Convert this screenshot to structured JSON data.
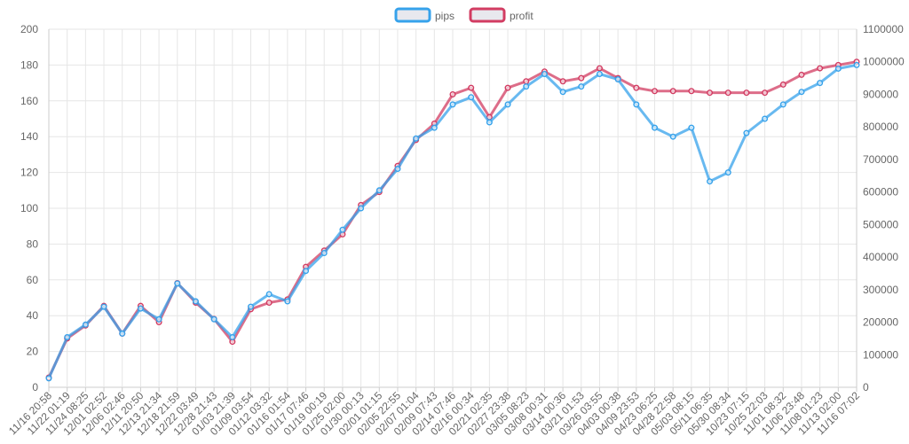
{
  "chart_data": {
    "type": "line",
    "title": "",
    "legend_position": "top-center",
    "grid": true,
    "x": [
      "11/16 20:58",
      "11/22 01:19",
      "11/24 08:25",
      "12/01 02:52",
      "12/06 02:46",
      "12/11 20:50",
      "12/13 21:34",
      "12/18 21:59",
      "12/22 03:49",
      "12/28 21:43",
      "01/03 21:39",
      "01/09 03:54",
      "01/12 03:32",
      "01/16 01:54",
      "01/17 07:46",
      "01/19 00:19",
      "01/25 02:00",
      "01/30 00:13",
      "02/01 01:15",
      "02/05 22:55",
      "02/07 01:04",
      "02/09 07:43",
      "02/14 07:46",
      "02/16 00:34",
      "02/21 02:35",
      "02/27 23:38",
      "03/05 08:23",
      "03/08 00:31",
      "03/14 00:36",
      "03/21 01:53",
      "03/26 03:55",
      "04/03 00:38",
      "04/09 23:53",
      "04/23 06:25",
      "04/28 22:58",
      "05/03 08:15",
      "05/11 06:35",
      "05/30 08:34",
      "10/23 07:15",
      "10/25 22:03",
      "11/01 08:32",
      "11/06 23:48",
      "11/08 01:23",
      "11/13 02:00",
      "11/16 07:02"
    ],
    "y_left": {
      "label": "",
      "range": [
        0,
        200
      ],
      "ticks": [
        0,
        20,
        40,
        60,
        80,
        100,
        120,
        140,
        160,
        180,
        200
      ]
    },
    "y_right": {
      "label": "",
      "range": [
        0,
        1100000
      ],
      "ticks": [
        0,
        100000,
        200000,
        300000,
        400000,
        500000,
        600000,
        700000,
        800000,
        900000,
        1000000,
        1100000
      ]
    },
    "series": [
      {
        "name": "pips",
        "axis": "left",
        "color": "#36a2eb",
        "values": [
          5,
          28,
          35,
          45,
          30,
          44,
          38,
          58,
          48,
          38,
          28,
          45,
          52,
          48,
          65,
          75,
          88,
          100,
          110,
          122,
          139,
          145,
          158,
          162,
          148,
          158,
          168,
          175,
          165,
          168,
          175,
          172,
          158,
          145,
          140,
          145,
          115,
          120,
          142,
          150,
          158,
          165,
          170,
          178,
          180
        ]
      },
      {
        "name": "profit",
        "axis": "right",
        "color": "#d23c62",
        "values": [
          30000,
          150000,
          190000,
          250000,
          165000,
          250000,
          200000,
          320000,
          260000,
          210000,
          140000,
          240000,
          260000,
          270000,
          370000,
          420000,
          470000,
          560000,
          600000,
          680000,
          760000,
          810000,
          900000,
          920000,
          830000,
          920000,
          940000,
          970000,
          940000,
          950000,
          980000,
          950000,
          920000,
          910000,
          910000,
          910000,
          905000,
          905000,
          905000,
          905000,
          930000,
          960000,
          980000,
          990000,
          1000000
        ]
      }
    ]
  }
}
